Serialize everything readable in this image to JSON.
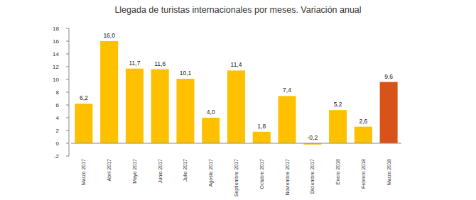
{
  "chart_data": {
    "type": "bar",
    "title": "Llegada de turistas internacionales por meses. Variación anual",
    "categories": [
      "Marzo 2017",
      "Abril 2017",
      "Mayo 2017",
      "Junio 2017",
      "Julio 2017",
      "Agosto 2017",
      "Septiembre 2017",
      "Octubre 2017",
      "Noviembre 2017",
      "Diciembre 2017",
      "Enero 2018",
      "Febrero 2018",
      "Marzo 2018"
    ],
    "values": [
      6.2,
      16.0,
      11.7,
      11.6,
      10.1,
      4.0,
      11.4,
      1.8,
      7.4,
      -0.2,
      5.2,
      2.6,
      9.6
    ],
    "value_labels": [
      "6,2",
      "16,0",
      "11,7",
      "11,6",
      "10,1",
      "4,0",
      "11,4",
      "1,8",
      "7,4",
      "-0,2",
      "5,2",
      "2,6",
      "9,6"
    ],
    "colors": [
      "#FFC000",
      "#FFC000",
      "#FFC000",
      "#FFC000",
      "#FFC000",
      "#FFC000",
      "#FFC000",
      "#FFC000",
      "#FFC000",
      "#FFC000",
      "#FFC000",
      "#FFC000",
      "#D95319"
    ],
    "ylim": [
      -2,
      18
    ],
    "yticks": [
      -2,
      0,
      2,
      4,
      6,
      8,
      10,
      12,
      14,
      16,
      18
    ],
    "grid": false,
    "data_labels": true
  }
}
